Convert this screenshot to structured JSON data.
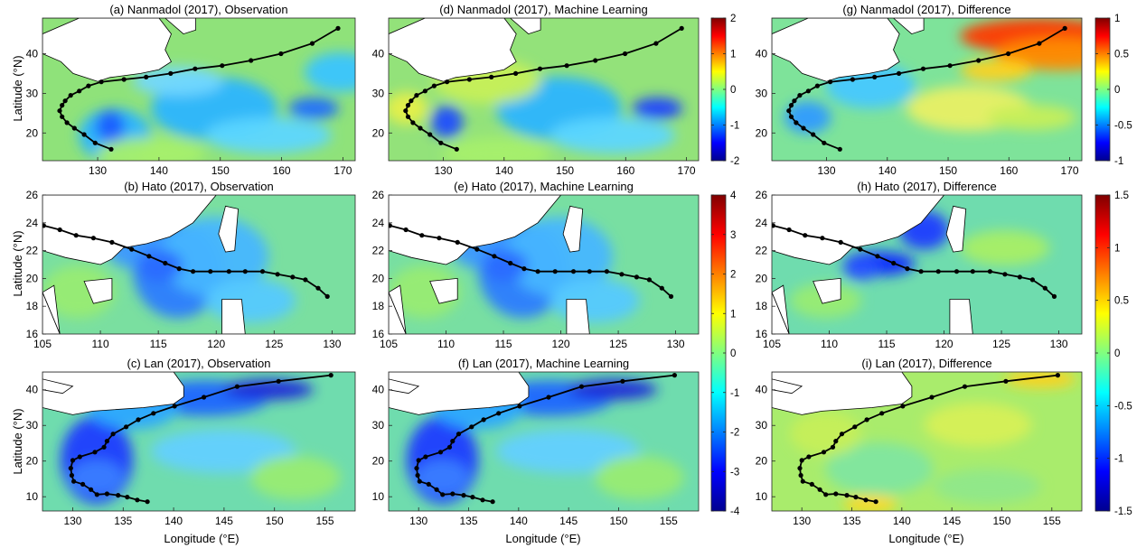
{
  "figure": {
    "xlabel": "Longitude (°E)",
    "ylabel": "Latitude (°N)"
  },
  "rows": [
    {
      "storm": "Nanmadol",
      "xlim": [
        121,
        172
      ],
      "ylim": [
        13,
        49
      ],
      "xticks": [
        130,
        140,
        150,
        160,
        170
      ],
      "yticks": [
        20,
        30,
        40
      ],
      "panels": [
        {
          "title": "(a) Nanmadol (2017), Observation"
        },
        {
          "title": "(d) Nanmadol (2017), Machine Learning"
        },
        {
          "title": "(g) Nanmadol (2017), Difference"
        }
      ],
      "track": [
        [
          132.2,
          15.9
        ],
        [
          129.6,
          17.5
        ],
        [
          127.8,
          19.6
        ],
        [
          126.2,
          21.2
        ],
        [
          125,
          22.6
        ],
        [
          124.2,
          24.1
        ],
        [
          123.8,
          25.6
        ],
        [
          124.2,
          27
        ],
        [
          124.7,
          28.1
        ],
        [
          125.6,
          29.5
        ],
        [
          127,
          30.6
        ],
        [
          128.5,
          31.9
        ],
        [
          130.6,
          32.9
        ],
        [
          134.3,
          33.5
        ],
        [
          137.9,
          34.1
        ],
        [
          141.9,
          35
        ],
        [
          145.9,
          36.2
        ],
        [
          150.3,
          37
        ],
        [
          155,
          38.3
        ],
        [
          159.9,
          40
        ],
        [
          165,
          42.6
        ],
        [
          169.2,
          46.4
        ]
      ]
    },
    {
      "storm": "Hato",
      "xlim": [
        105,
        132
      ],
      "ylim": [
        16,
        26
      ],
      "xticks": [
        105,
        110,
        115,
        120,
        125,
        130
      ],
      "yticks": [
        16,
        18,
        20,
        22,
        24,
        26
      ],
      "panels": [
        {
          "title": "(b) Hato (2017), Observation"
        },
        {
          "title": "(e) Hato (2017), Machine Learning"
        },
        {
          "title": "(h) Hato (2017), Difference"
        }
      ],
      "track": [
        [
          105.1,
          23.8
        ],
        [
          106.5,
          23.5
        ],
        [
          107.9,
          23.1
        ],
        [
          109.4,
          22.9
        ],
        [
          111,
          22.6
        ],
        [
          112.7,
          22.1
        ],
        [
          114.2,
          21.6
        ],
        [
          115.6,
          21.1
        ],
        [
          116.8,
          20.7
        ],
        [
          118,
          20.5
        ],
        [
          119.5,
          20.5
        ],
        [
          121.1,
          20.5
        ],
        [
          122.5,
          20.5
        ],
        [
          124,
          20.5
        ],
        [
          125.3,
          20.3
        ],
        [
          126.6,
          20.1
        ],
        [
          127.7,
          19.9
        ],
        [
          128.8,
          19.3
        ],
        [
          129.6,
          18.7
        ]
      ]
    },
    {
      "storm": "Lan",
      "xlim": [
        127,
        158
      ],
      "ylim": [
        6,
        45
      ],
      "xticks": [
        130,
        135,
        140,
        145,
        150,
        155
      ],
      "yticks": [
        10,
        20,
        30,
        40
      ],
      "panels": [
        {
          "title": "(c) Lan (2017), Observation"
        },
        {
          "title": "(f) Lan (2017), Machine Learning"
        },
        {
          "title": "(i) Lan (2017), Difference"
        }
      ],
      "track": [
        [
          137.4,
          8.6
        ],
        [
          136.4,
          9.1
        ],
        [
          135.4,
          9.9
        ],
        [
          134.5,
          10.4
        ],
        [
          133.4,
          10.8
        ],
        [
          132.4,
          10.6
        ],
        [
          131.8,
          12
        ],
        [
          131,
          13.5
        ],
        [
          130.1,
          14.3
        ],
        [
          129.9,
          16
        ],
        [
          129.8,
          18
        ],
        [
          130,
          20.2
        ],
        [
          130.7,
          21.2
        ],
        [
          132.2,
          22.5
        ],
        [
          133.1,
          23.9
        ],
        [
          133.4,
          25.6
        ],
        [
          134,
          27.6
        ],
        [
          135.3,
          29.6
        ],
        [
          136.5,
          31.6
        ],
        [
          138,
          33.4
        ],
        [
          140.1,
          35.4
        ],
        [
          143,
          37.9
        ],
        [
          146.3,
          40.9
        ],
        [
          150.4,
          42.4
        ],
        [
          155.6,
          44.1
        ]
      ]
    }
  ],
  "colorbars": [
    {
      "ticks": [
        "2",
        "1",
        "0",
        "-1",
        "-2"
      ],
      "range": [
        -2,
        2
      ],
      "colormap": "jet"
    },
    {
      "ticks": [
        "1",
        "0.5",
        "0",
        "-0.5",
        "-1"
      ],
      "range": [
        -1,
        1
      ],
      "colormap": "jet"
    },
    {
      "ticks": [
        "4",
        "3",
        "2",
        "1",
        "0",
        "-1",
        "-2",
        "-3",
        "-4"
      ],
      "range": [
        -4,
        4
      ],
      "colormap": "jet"
    },
    {
      "ticks": [
        "1.5",
        "1",
        "0.5",
        "0",
        "-0.5",
        "-1",
        "-1.5"
      ],
      "range": [
        -1.5,
        1.5
      ],
      "colormap": "jet"
    }
  ],
  "colors": {
    "track": "#000000",
    "land": "#ffffff",
    "jet": [
      "#00008f",
      "#0000ff",
      "#0080ff",
      "#00ffff",
      "#80ff80",
      "#ffff00",
      "#ff8000",
      "#ff0000",
      "#800000"
    ]
  }
}
